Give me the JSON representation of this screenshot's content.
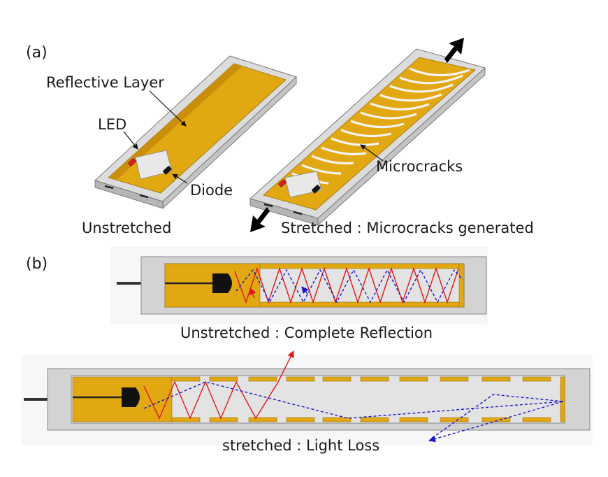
{
  "panel_a": {
    "label": "(a)",
    "reflective_layer": "Reflective Layer",
    "led": "LED",
    "diode": "Diode",
    "microcracks": "Microcracks",
    "unstretched_caption": "Unstretched",
    "stretched_caption": "Stretched : Microcracks generated"
  },
  "panel_b": {
    "label": "(b)",
    "unstretched_caption": "Unstretched : Complete Reflection",
    "stretched_caption": "stretched : Light Loss"
  },
  "colors": {
    "reflective_gold": "#e2a812",
    "frame_gray": "#d3d3d3",
    "cavity_gray": "#e3e3e3",
    "led_red": "#e02020",
    "light_ray_red": "#e01818",
    "light_ray_blue": "#1818cc",
    "arrow_black": "#000000"
  }
}
